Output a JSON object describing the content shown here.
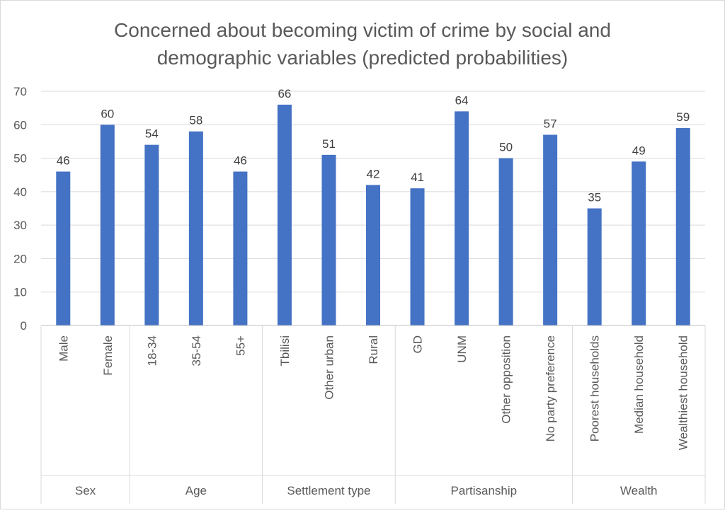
{
  "chart_data": {
    "type": "bar",
    "title_lines": [
      "Concerned about becoming victim of crime by social and",
      "demographic variables (predicted probabilities)"
    ],
    "ylim": [
      0,
      70
    ],
    "yticks": [
      "0",
      "10",
      "20",
      "30",
      "40",
      "50",
      "60",
      "70"
    ],
    "grid": true,
    "bar_color": "#4472C4",
    "categories": [
      "Male",
      "Female",
      "18-34",
      "35-54",
      "55+",
      "Tbilisi",
      "Other urban",
      "Rural",
      "GD",
      "UNM",
      "Other opposition",
      "No party preference",
      "Poorest households",
      "Median household",
      "Wealthiest household"
    ],
    "values": [
      46,
      60,
      54,
      58,
      46,
      66,
      51,
      42,
      41,
      64,
      50,
      57,
      35,
      49,
      59
    ],
    "groups": [
      {
        "label": "Sex",
        "count": 2
      },
      {
        "label": "Age",
        "count": 3
      },
      {
        "label": "Settlement type",
        "count": 3
      },
      {
        "label": "Partisanship",
        "count": 4
      },
      {
        "label": "Wealth",
        "count": 3
      }
    ]
  }
}
